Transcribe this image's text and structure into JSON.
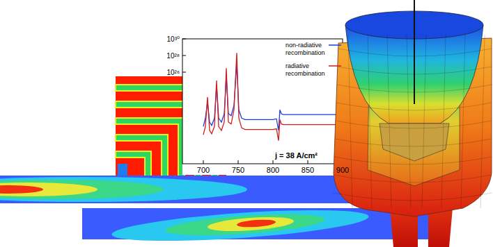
{
  "chart_data": {
    "type": "line",
    "log": "y",
    "legend": "top-right",
    "annotation": "j = 38 A/cm²",
    "xlim": [
      670,
      900
    ],
    "xticks": [
      700,
      750,
      800,
      850,
      900
    ],
    "ylim": [
      1000000000000000.0,
      1e+30
    ],
    "yticks": [
      {
        "value": 1e+26,
        "label": "10²⁶"
      },
      {
        "value": 1e+28,
        "label": "10²⁸"
      },
      {
        "value": 1e+30,
        "label": "10³⁰"
      }
    ],
    "x": [
      700,
      703,
      706,
      709,
      712,
      716,
      719,
      722,
      726,
      730,
      733,
      736,
      740,
      744,
      748,
      751,
      755,
      760,
      770,
      780,
      790,
      800,
      805,
      808,
      810,
      812,
      815,
      820,
      830,
      840,
      850,
      860,
      870,
      880,
      890,
      900
    ],
    "series": [
      {
        "name": "non-radiative recombination",
        "color": "#1c3ce6",
        "values": [
          3e+19,
          3e+20,
          3e+22,
          1e+20,
          4e+19,
          3e+20,
          3e+24,
          3e+20,
          1e+20,
          1e+21,
          3e+25,
          1e+21,
          6e+20,
          1e+22,
          1e+27,
          3e+21,
          3e+20,
          2e+20,
          2e+20,
          2e+20,
          2e+20,
          2e+20,
          2.5e+20,
          1e+19,
          3e+21,
          1e+21,
          8e+20,
          8e+20,
          8e+20,
          8e+20,
          8e+20,
          8e+20,
          8e+20,
          8e+20,
          8e+20,
          8e+20
        ]
      },
      {
        "name": "radiative recombination",
        "color": "#d41c1c",
        "values": [
          3e+18,
          3e+19,
          1e+23,
          1e+19,
          4e+18,
          3e+19,
          1e+25,
          3e+19,
          1e+19,
          1e+20,
          3e+26,
          1e+20,
          6e+19,
          3e+21,
          2e+28,
          3e+20,
          2e+19,
          1.3e+19,
          1.3e+19,
          1.3e+19,
          1.3e+19,
          1.3e+19,
          1.6e+19,
          6e+17,
          2e+20,
          6e+19,
          5e+19,
          5e+19,
          5e+19,
          5e+19,
          5e+19,
          5e+19,
          5e+19,
          5e+19,
          5e+19,
          5e+19
        ]
      }
    ]
  }
}
